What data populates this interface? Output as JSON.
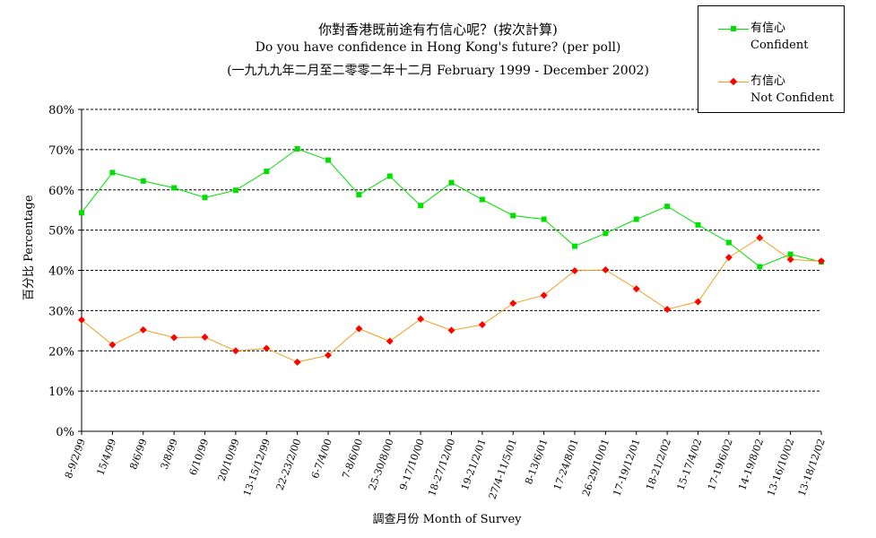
{
  "chart_data": {
    "type": "line",
    "title_zh": "你對香港既前途有冇信心呢？(按次計算)",
    "title_en": "Do you have confidence in Hong Kong's future? (per poll)",
    "subtitle": "(一九九九年二月至二零零二年十二月 February 1999 - December 2002)",
    "ylabel": "百分比 Percentage",
    "xlabel": "調查月份 Month of Survey",
    "ylim": [
      0,
      80
    ],
    "yticks": [
      "0%",
      "10%",
      "20%",
      "30%",
      "40%",
      "50%",
      "60%",
      "70%",
      "80%"
    ],
    "grid": true,
    "legend_position": "top-right",
    "categories": [
      "8-9/2/99",
      "15/4/99",
      "8/6/99",
      "3/8/99",
      "6/10/99",
      "20/10/99",
      "13-15/12/99",
      "22-23/2/00",
      "6-7/4/00",
      "7-8/6/00",
      "25-30/8/00",
      "9-17/10/00",
      "18-27/12/00",
      "19-21/2/01",
      "27/4-11/5/01",
      "8-13/6/01",
      "17-24/8/01",
      "26-29/10/01",
      "17-19/12/01",
      "18-21/2/02",
      "15-17/4/02",
      "17-19/6/02",
      "14-19/8/02",
      "13-16/10/02",
      "13-18/12/02"
    ],
    "series": [
      {
        "name": "有信心",
        "name_en": "Confident",
        "color": "#00e000",
        "marker": "square",
        "values": [
          54.3,
          64.3,
          62.2,
          60.5,
          58.1,
          59.9,
          64.6,
          70.2,
          67.4,
          58.8,
          63.4,
          56.1,
          61.8,
          57.6,
          53.6,
          52.7,
          46.0,
          49.2,
          52.7,
          55.9,
          51.3,
          46.9,
          40.9,
          44.0,
          42.1
        ]
      },
      {
        "name": "冇信心",
        "name_en": "Not Confident",
        "color": "#f0a020",
        "marker_color": "#ff0000",
        "marker": "diamond",
        "values": [
          27.7,
          21.5,
          25.2,
          23.3,
          23.4,
          20.0,
          20.6,
          17.2,
          18.9,
          25.5,
          22.4,
          27.9,
          25.1,
          26.5,
          31.8,
          33.8,
          39.9,
          40.1,
          35.4,
          30.3,
          32.2,
          43.2,
          48.1,
          42.7,
          42.3
        ]
      }
    ]
  }
}
